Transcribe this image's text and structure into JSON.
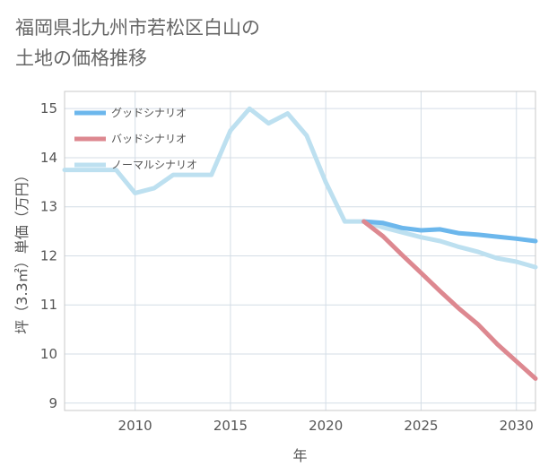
{
  "title_lines": [
    "福岡県北九州市若松区白山の",
    "土地の価格推移"
  ],
  "chart_data": {
    "type": "line",
    "title": "福岡県北九州市若松区白山の土地の価格推移",
    "xlabel": "年",
    "ylabel": "坪（3.3㎡）単価（万円）",
    "xlim": [
      2006.3,
      2031
    ],
    "ylim": [
      8.85,
      15.35
    ],
    "x_ticks": [
      2010,
      2015,
      2020,
      2025,
      2030
    ],
    "y_ticks": [
      9,
      10,
      11,
      12,
      13,
      14,
      15
    ],
    "grid": true,
    "legend_position": "top-left",
    "series": [
      {
        "name": "グッドシナリオ",
        "color": "#6cb7ec",
        "x": [
          2022,
          2023,
          2024,
          2025,
          2026,
          2027,
          2028,
          2029,
          2030,
          2031
        ],
        "y": [
          12.7,
          12.67,
          12.57,
          12.52,
          12.54,
          12.46,
          12.43,
          12.39,
          12.35,
          12.3
        ]
      },
      {
        "name": "バッドシナリオ",
        "color": "#dd8890",
        "x": [
          2022,
          2023,
          2024,
          2025,
          2026,
          2027,
          2028,
          2029,
          2030,
          2031
        ],
        "y": [
          12.7,
          12.4,
          12.02,
          11.65,
          11.28,
          10.92,
          10.6,
          10.2,
          9.85,
          9.5
        ]
      },
      {
        "name": "ノーマルシナリオ",
        "color": "#bde0f0",
        "x": [
          2006.3,
          2009,
          2010,
          2011,
          2012,
          2013,
          2014,
          2015,
          2016,
          2017,
          2018,
          2019,
          2020,
          2021,
          2022,
          2023,
          2024,
          2025,
          2026,
          2027,
          2028,
          2029,
          2030,
          2031
        ],
        "y": [
          13.75,
          13.75,
          13.28,
          13.38,
          13.65,
          13.65,
          13.65,
          14.55,
          15.0,
          14.7,
          14.9,
          14.45,
          13.5,
          12.7,
          12.7,
          12.58,
          12.48,
          12.38,
          12.3,
          12.18,
          12.08,
          11.95,
          11.88,
          11.77
        ]
      }
    ]
  }
}
